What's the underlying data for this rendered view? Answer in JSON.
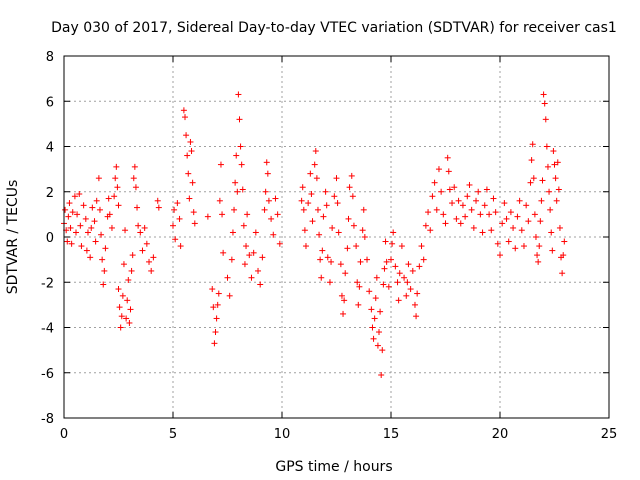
{
  "chart_data": {
    "type": "scatter",
    "title": "Day 030 of 2017, Sidereal Day-to-day VTEC variation (SDTVAR) for receiver cas1",
    "xlabel": "GPS time / hours",
    "ylabel": "SDTVAR / TECUs",
    "xlim": [
      0,
      25
    ],
    "ylim": [
      -8,
      8
    ],
    "x_ticks": [
      0,
      5,
      10,
      15,
      20,
      25
    ],
    "y_ticks": [
      -8,
      -6,
      -4,
      -2,
      0,
      2,
      4,
      6,
      8
    ],
    "grid": true,
    "marker": "+",
    "color": "#ff0000",
    "series": [
      {
        "name": "cas1",
        "points": [
          [
            0.0,
            0.6
          ],
          [
            0.05,
            1.2
          ],
          [
            0.1,
            0.3
          ],
          [
            0.15,
            -0.2
          ],
          [
            0.2,
            0.9
          ],
          [
            0.25,
            1.5
          ],
          [
            0.3,
            0.4
          ],
          [
            0.35,
            -0.3
          ],
          [
            0.4,
            1.1
          ],
          [
            0.5,
            1.8
          ],
          [
            0.55,
            0.2
          ],
          [
            0.6,
            1.0
          ],
          [
            0.7,
            1.9
          ],
          [
            0.75,
            0.5
          ],
          [
            0.8,
            -0.4
          ],
          [
            0.9,
            1.4
          ],
          [
            1.0,
            0.8
          ],
          [
            1.05,
            -0.6
          ],
          [
            1.1,
            0.2
          ],
          [
            1.2,
            -0.9
          ],
          [
            1.25,
            0.4
          ],
          [
            1.3,
            1.3
          ],
          [
            1.4,
            0.7
          ],
          [
            1.45,
            -0.2
          ],
          [
            1.5,
            1.6
          ],
          [
            1.6,
            2.6
          ],
          [
            1.65,
            1.2
          ],
          [
            1.7,
            0.1
          ],
          [
            1.75,
            -1.0
          ],
          [
            1.8,
            -2.1
          ],
          [
            1.85,
            -1.5
          ],
          [
            1.9,
            -0.5
          ],
          [
            2.0,
            0.9
          ],
          [
            2.05,
            1.7
          ],
          [
            2.1,
            1.0
          ],
          [
            2.2,
            0.4
          ],
          [
            2.3,
            1.8
          ],
          [
            2.35,
            2.6
          ],
          [
            2.4,
            3.1
          ],
          [
            2.45,
            2.2
          ],
          [
            2.5,
            1.4
          ],
          [
            2.5,
            -2.3
          ],
          [
            2.55,
            -3.1
          ],
          [
            2.6,
            -4.0
          ],
          [
            2.65,
            -3.5
          ],
          [
            2.7,
            -2.6
          ],
          [
            2.75,
            -1.2
          ],
          [
            2.8,
            0.3
          ],
          [
            2.85,
            -3.6
          ],
          [
            2.9,
            -2.8
          ],
          [
            2.95,
            -1.9
          ],
          [
            3.0,
            -3.8
          ],
          [
            3.05,
            -3.2
          ],
          [
            3.1,
            -1.5
          ],
          [
            3.15,
            -0.8
          ],
          [
            3.2,
            2.6
          ],
          [
            3.25,
            3.1
          ],
          [
            3.3,
            2.2
          ],
          [
            3.35,
            1.3
          ],
          [
            3.4,
            0.5
          ],
          [
            3.5,
            0.2
          ],
          [
            3.6,
            -0.6
          ],
          [
            3.7,
            0.4
          ],
          [
            3.8,
            -0.3
          ],
          [
            3.9,
            -1.1
          ],
          [
            4.0,
            -1.5
          ],
          [
            4.1,
            -0.9
          ],
          [
            4.3,
            1.6
          ],
          [
            4.35,
            1.3
          ],
          [
            5.0,
            0.5
          ],
          [
            5.05,
            1.2
          ],
          [
            5.1,
            -0.1
          ],
          [
            5.2,
            1.5
          ],
          [
            5.3,
            0.8
          ],
          [
            5.35,
            -0.4
          ],
          [
            5.5,
            5.6
          ],
          [
            5.55,
            5.3
          ],
          [
            5.6,
            4.5
          ],
          [
            5.65,
            3.6
          ],
          [
            5.7,
            2.8
          ],
          [
            5.75,
            1.7
          ],
          [
            5.8,
            4.2
          ],
          [
            5.85,
            3.8
          ],
          [
            5.9,
            2.4
          ],
          [
            5.95,
            1.1
          ],
          [
            6.0,
            0.6
          ],
          [
            6.6,
            0.9
          ],
          [
            6.8,
            -2.3
          ],
          [
            6.85,
            -3.1
          ],
          [
            6.9,
            -4.7
          ],
          [
            6.95,
            -4.2
          ],
          [
            7.0,
            -3.6
          ],
          [
            7.05,
            -3.0
          ],
          [
            7.1,
            -2.5
          ],
          [
            7.15,
            1.6
          ],
          [
            7.2,
            3.2
          ],
          [
            7.25,
            1.0
          ],
          [
            7.3,
            -0.7
          ],
          [
            7.5,
            -1.8
          ],
          [
            7.6,
            -2.6
          ],
          [
            7.7,
            -1.0
          ],
          [
            7.75,
            0.2
          ],
          [
            7.8,
            1.2
          ],
          [
            7.85,
            2.4
          ],
          [
            7.9,
            3.6
          ],
          [
            7.95,
            2.0
          ],
          [
            8.0,
            6.3
          ],
          [
            8.05,
            5.2
          ],
          [
            8.1,
            4.0
          ],
          [
            8.15,
            3.2
          ],
          [
            8.2,
            2.1
          ],
          [
            8.25,
            0.5
          ],
          [
            8.3,
            -1.2
          ],
          [
            8.35,
            -0.4
          ],
          [
            8.4,
            1.0
          ],
          [
            8.5,
            -0.8
          ],
          [
            8.6,
            -1.8
          ],
          [
            8.7,
            -0.7
          ],
          [
            8.8,
            0.2
          ],
          [
            8.9,
            -1.5
          ],
          [
            9.0,
            -2.1
          ],
          [
            9.1,
            -0.9
          ],
          [
            9.2,
            1.2
          ],
          [
            9.25,
            2.0
          ],
          [
            9.3,
            3.3
          ],
          [
            9.35,
            2.8
          ],
          [
            9.4,
            1.6
          ],
          [
            9.5,
            0.8
          ],
          [
            9.6,
            0.1
          ],
          [
            9.7,
            1.7
          ],
          [
            9.8,
            1.0
          ],
          [
            9.9,
            -0.3
          ],
          [
            10.9,
            1.6
          ],
          [
            10.95,
            2.2
          ],
          [
            11.0,
            1.2
          ],
          [
            11.05,
            0.3
          ],
          [
            11.1,
            -0.4
          ],
          [
            11.2,
            1.5
          ],
          [
            11.3,
            2.8
          ],
          [
            11.35,
            1.9
          ],
          [
            11.4,
            0.7
          ],
          [
            11.5,
            3.2
          ],
          [
            11.55,
            3.8
          ],
          [
            11.6,
            2.6
          ],
          [
            11.65,
            1.2
          ],
          [
            11.7,
            0.1
          ],
          [
            11.75,
            -1.0
          ],
          [
            11.8,
            -1.8
          ],
          [
            11.85,
            -0.6
          ],
          [
            11.9,
            0.9
          ],
          [
            12.0,
            2.0
          ],
          [
            12.05,
            1.4
          ],
          [
            12.1,
            -0.9
          ],
          [
            12.2,
            -2.0
          ],
          [
            12.25,
            -1.1
          ],
          [
            12.3,
            0.4
          ],
          [
            12.4,
            1.8
          ],
          [
            12.5,
            2.6
          ],
          [
            12.55,
            1.5
          ],
          [
            12.6,
            0.2
          ],
          [
            12.7,
            -1.2
          ],
          [
            12.75,
            -2.6
          ],
          [
            12.8,
            -3.4
          ],
          [
            12.85,
            -2.8
          ],
          [
            12.9,
            -1.6
          ],
          [
            13.0,
            -0.5
          ],
          [
            13.05,
            0.8
          ],
          [
            13.1,
            2.2
          ],
          [
            13.2,
            2.7
          ],
          [
            13.25,
            1.8
          ],
          [
            13.3,
            0.5
          ],
          [
            13.4,
            -0.4
          ],
          [
            13.45,
            -2.0
          ],
          [
            13.5,
            -3.0
          ],
          [
            13.55,
            -2.2
          ],
          [
            13.6,
            -1.1
          ],
          [
            13.7,
            0.3
          ],
          [
            13.75,
            1.2
          ],
          [
            13.8,
            0.0
          ],
          [
            13.9,
            -1.0
          ],
          [
            14.0,
            -2.4
          ],
          [
            14.1,
            -3.2
          ],
          [
            14.15,
            -4.0
          ],
          [
            14.2,
            -4.5
          ],
          [
            14.25,
            -3.6
          ],
          [
            14.3,
            -2.7
          ],
          [
            14.35,
            -1.8
          ],
          [
            14.4,
            -4.8
          ],
          [
            14.45,
            -4.2
          ],
          [
            14.5,
            -3.3
          ],
          [
            14.55,
            -6.1
          ],
          [
            14.6,
            -5.0
          ],
          [
            14.65,
            -2.1
          ],
          [
            14.7,
            -1.4
          ],
          [
            14.75,
            -0.2
          ],
          [
            14.8,
            -1.1
          ],
          [
            14.9,
            -2.2
          ],
          [
            15.0,
            -1.0
          ],
          [
            15.05,
            -0.3
          ],
          [
            15.1,
            0.2
          ],
          [
            15.2,
            -1.3
          ],
          [
            15.3,
            -2.0
          ],
          [
            15.35,
            -2.8
          ],
          [
            15.4,
            -1.6
          ],
          [
            15.5,
            -0.4
          ],
          [
            15.6,
            -1.8
          ],
          [
            15.7,
            -2.6
          ],
          [
            15.75,
            -2.0
          ],
          [
            15.8,
            -1.2
          ],
          [
            15.9,
            -2.3
          ],
          [
            16.0,
            -1.5
          ],
          [
            16.1,
            -3.0
          ],
          [
            16.15,
            -3.5
          ],
          [
            16.2,
            -2.5
          ],
          [
            16.3,
            -1.3
          ],
          [
            16.4,
            -0.4
          ],
          [
            16.5,
            -1.0
          ],
          [
            16.6,
            0.5
          ],
          [
            16.7,
            1.1
          ],
          [
            16.8,
            0.3
          ],
          [
            16.9,
            1.8
          ],
          [
            17.0,
            2.4
          ],
          [
            17.1,
            1.2
          ],
          [
            17.2,
            3.0
          ],
          [
            17.3,
            2.0
          ],
          [
            17.4,
            1.0
          ],
          [
            17.5,
            0.6
          ],
          [
            17.6,
            3.5
          ],
          [
            17.65,
            2.9
          ],
          [
            17.7,
            2.1
          ],
          [
            17.8,
            1.5
          ],
          [
            17.9,
            2.2
          ],
          [
            18.0,
            0.8
          ],
          [
            18.1,
            1.6
          ],
          [
            18.2,
            0.6
          ],
          [
            18.3,
            1.4
          ],
          [
            18.4,
            0.9
          ],
          [
            18.5,
            1.8
          ],
          [
            18.6,
            2.3
          ],
          [
            18.7,
            1.2
          ],
          [
            18.8,
            0.4
          ],
          [
            18.9,
            1.6
          ],
          [
            19.0,
            2.0
          ],
          [
            19.1,
            1.0
          ],
          [
            19.2,
            0.2
          ],
          [
            19.3,
            1.4
          ],
          [
            19.4,
            2.1
          ],
          [
            19.5,
            1.0
          ],
          [
            19.6,
            0.3
          ],
          [
            19.7,
            1.7
          ],
          [
            19.8,
            1.1
          ],
          [
            19.9,
            -0.3
          ],
          [
            20.0,
            -0.8
          ],
          [
            20.1,
            0.6
          ],
          [
            20.2,
            1.5
          ],
          [
            20.3,
            0.8
          ],
          [
            20.4,
            -0.2
          ],
          [
            20.5,
            1.1
          ],
          [
            20.6,
            0.4
          ],
          [
            20.7,
            -0.5
          ],
          [
            20.8,
            0.9
          ],
          [
            20.9,
            1.6
          ],
          [
            21.0,
            0.3
          ],
          [
            21.1,
            -0.4
          ],
          [
            21.2,
            1.4
          ],
          [
            21.3,
            0.7
          ],
          [
            21.4,
            2.4
          ],
          [
            21.45,
            3.4
          ],
          [
            21.5,
            4.1
          ],
          [
            21.55,
            2.6
          ],
          [
            21.6,
            1.0
          ],
          [
            21.65,
            0.0
          ],
          [
            21.7,
            -0.8
          ],
          [
            21.75,
            -1.1
          ],
          [
            21.8,
            -0.4
          ],
          [
            21.85,
            0.7
          ],
          [
            21.9,
            1.6
          ],
          [
            21.95,
            2.5
          ],
          [
            22.0,
            6.3
          ],
          [
            22.05,
            5.9
          ],
          [
            22.1,
            5.2
          ],
          [
            22.15,
            4.0
          ],
          [
            22.2,
            3.1
          ],
          [
            22.25,
            2.0
          ],
          [
            22.3,
            1.2
          ],
          [
            22.35,
            0.2
          ],
          [
            22.4,
            -0.6
          ],
          [
            22.45,
            3.8
          ],
          [
            22.5,
            3.2
          ],
          [
            22.55,
            2.6
          ],
          [
            22.6,
            1.6
          ],
          [
            22.65,
            3.3
          ],
          [
            22.7,
            2.1
          ],
          [
            22.75,
            0.4
          ],
          [
            22.8,
            -0.9
          ],
          [
            22.85,
            -1.6
          ],
          [
            22.9,
            -0.8
          ],
          [
            22.95,
            -0.2
          ]
        ]
      }
    ]
  }
}
